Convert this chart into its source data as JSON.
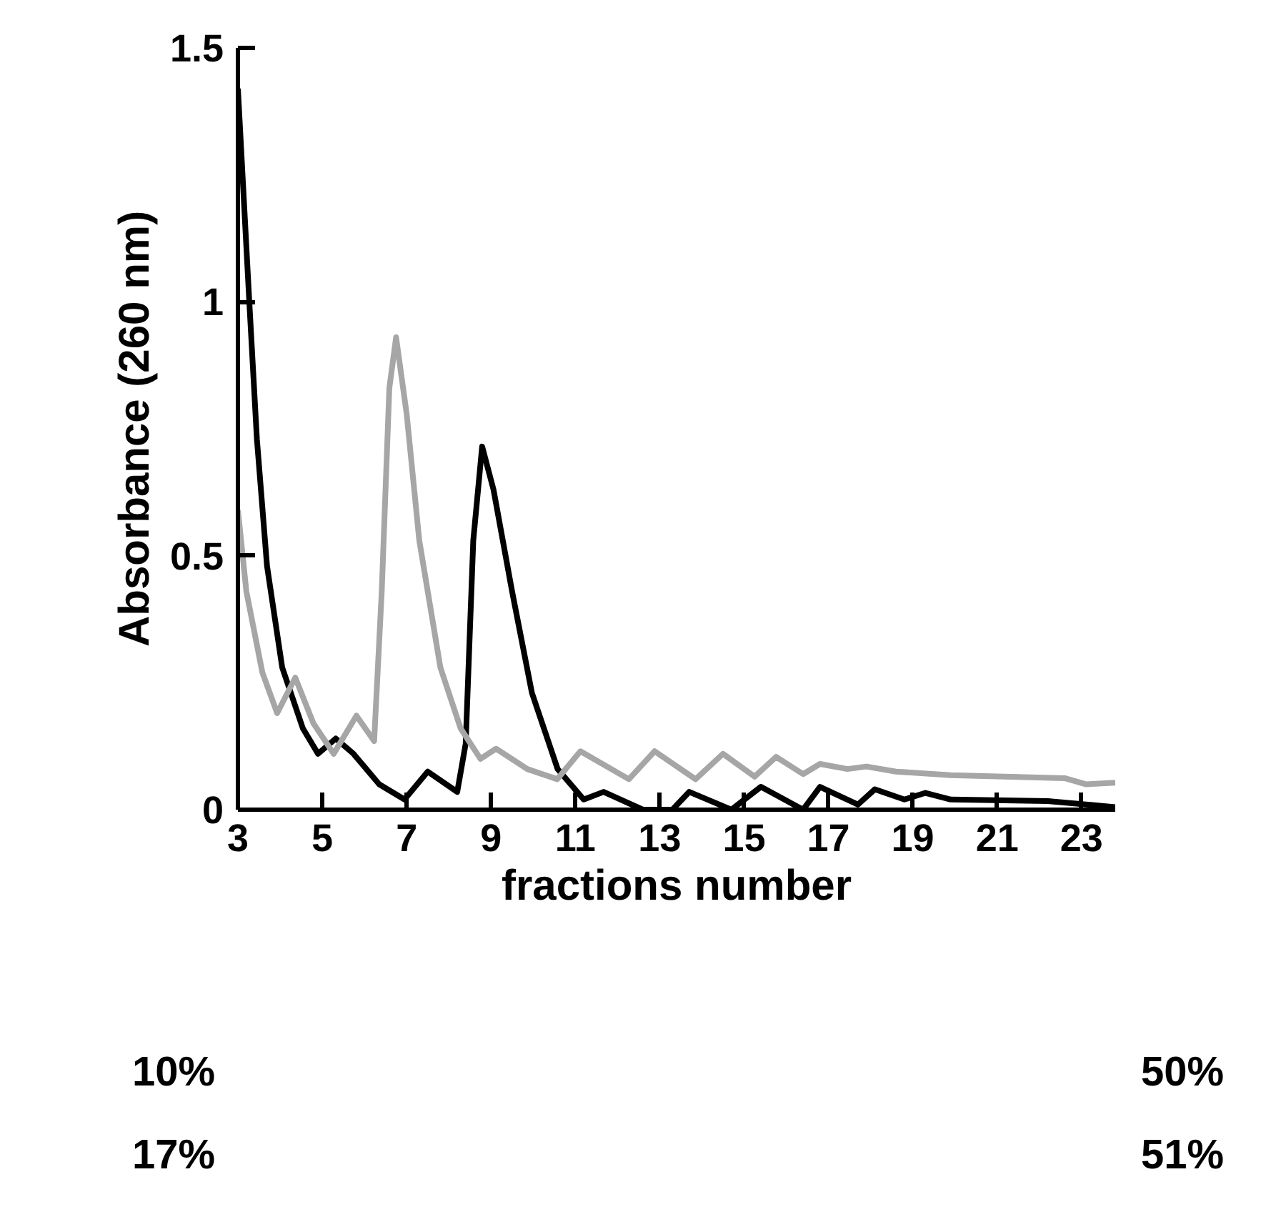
{
  "chart_data": {
    "type": "line",
    "xlabel": "fractions number",
    "ylabel": "Absorbance (260 nm)",
    "xlim": [
      3,
      23.8
    ],
    "ylim": [
      0,
      1.5
    ],
    "xticks": [
      3,
      5,
      7,
      9,
      11,
      13,
      15,
      17,
      19,
      21,
      23
    ],
    "yticks": [
      0,
      {
        "value": 0.5,
        "label": "0.5"
      },
      1,
      1.5
    ],
    "line_style": "solid",
    "annotations": [
      "10%",
      "50%",
      "17%",
      "51%"
    ],
    "series": [
      {
        "color": "#000000",
        "x": [
          3,
          3.27,
          3.45,
          3.69,
          4.05,
          4.54,
          4.9,
          5.32,
          5.74,
          6.35,
          6.95,
          7.5,
          8.2,
          8.4,
          8.58,
          8.79,
          9.06,
          9.5,
          9.97,
          10.58,
          11.2,
          11.67,
          12.6,
          13.3,
          13.7,
          14.7,
          15.4,
          16.4,
          16.8,
          17.7,
          18.1,
          18.8,
          19.3,
          19.9,
          22.2,
          23.8
        ],
        "values": [
          1.42,
          1.0,
          0.73,
          0.48,
          0.28,
          0.16,
          0.11,
          0.14,
          0.11,
          0.05,
          0.02,
          0.075,
          0.035,
          0.13,
          0.53,
          0.715,
          0.63,
          0.43,
          0.23,
          0.08,
          0.02,
          0.035,
          0.0,
          0.0,
          0.035,
          0.0,
          0.045,
          0.0,
          0.045,
          0.01,
          0.04,
          0.02,
          0.033,
          0.02,
          0.017,
          0.005
        ]
      },
      {
        "color": "#a6a6a6",
        "x": [
          3,
          3.2,
          3.58,
          3.93,
          4.36,
          4.79,
          5.27,
          5.81,
          6.23,
          6.41,
          6.59,
          6.75,
          7.0,
          7.3,
          7.8,
          8.28,
          8.75,
          9.12,
          9.86,
          10.57,
          11.12,
          12.27,
          12.88,
          13.85,
          14.5,
          15.25,
          15.76,
          16.4,
          16.8,
          17.45,
          17.9,
          18.6,
          19.9,
          22.6,
          23.1,
          23.8
        ],
        "values": [
          0.59,
          0.43,
          0.27,
          0.19,
          0.26,
          0.17,
          0.11,
          0.185,
          0.135,
          0.43,
          0.83,
          0.93,
          0.78,
          0.53,
          0.28,
          0.16,
          0.1,
          0.12,
          0.08,
          0.06,
          0.115,
          0.06,
          0.115,
          0.06,
          0.11,
          0.065,
          0.104,
          0.07,
          0.09,
          0.08,
          0.085,
          0.075,
          0.068,
          0.062,
          0.05,
          0.053
        ]
      }
    ]
  }
}
